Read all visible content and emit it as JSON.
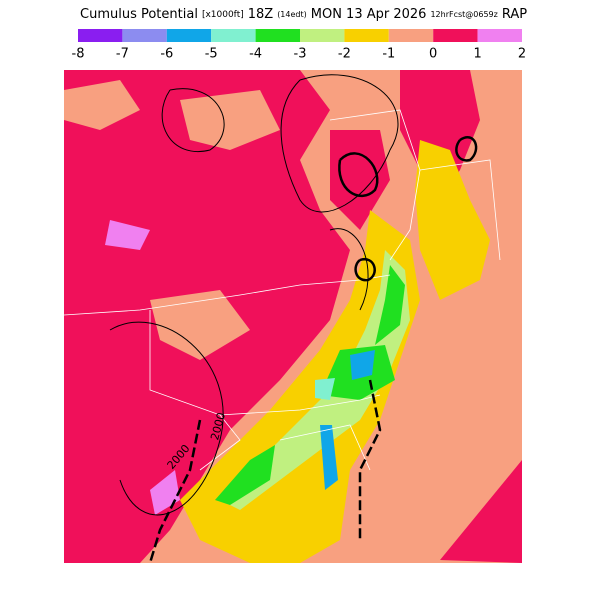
{
  "header": {
    "title_parts": [
      "Cumulus Potential",
      "[x1000ft]",
      "18Z",
      "(14edt)",
      "MON 13 Apr 2026",
      "12hrFcst@0659z",
      "RAP"
    ]
  },
  "legend": {
    "labels": [
      "-8",
      "-7",
      "-6",
      "-5",
      "-4",
      "-3",
      "-2",
      "-1",
      "0",
      "1",
      "2"
    ],
    "colors": [
      "#8a1ef0",
      "#8c8cf0",
      "#10a6e8",
      "#80f0d0",
      "#20e020",
      "#c0f080",
      "#f8d000",
      "#f8a080",
      "#f0105a",
      "#f080f0"
    ]
  },
  "map": {
    "contour_labels": [
      "2000",
      "2000"
    ]
  }
}
